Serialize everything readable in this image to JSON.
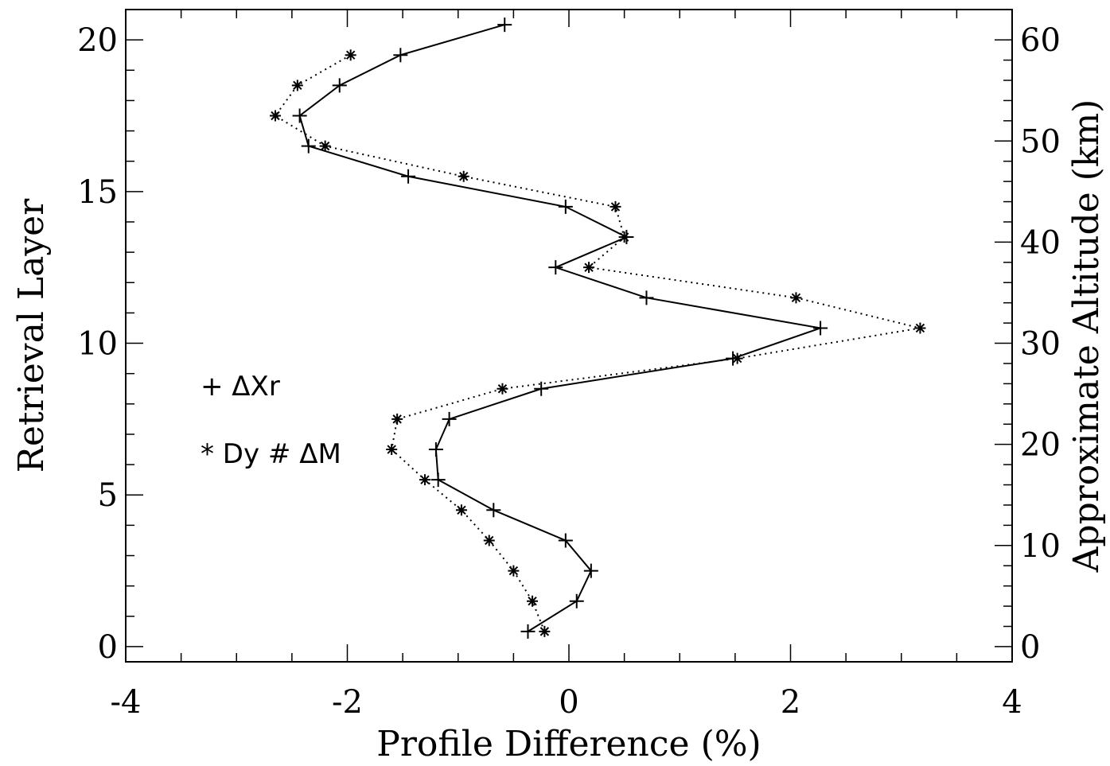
{
  "chart_data": {
    "type": "line",
    "xlabel": "Profile Difference (%)",
    "ylabel": "Retrieval Layer",
    "y2label": "Approximate Altitude (km)",
    "xlim": [
      -4,
      4
    ],
    "ylim": [
      -0.5,
      21
    ],
    "x_ticks": [
      -4,
      -2,
      0,
      2,
      4
    ],
    "x_tick_labels": [
      "-4",
      "-2",
      "0",
      "2",
      "4"
    ],
    "y_ticks": [
      0,
      5,
      10,
      15,
      20
    ],
    "y_tick_labels": [
      "0",
      "5",
      "10",
      "15",
      "20"
    ],
    "y2_ticks": [
      0,
      10,
      20,
      30,
      40,
      50,
      60
    ],
    "y2_tick_labels": [
      "0",
      "10",
      "20",
      "30",
      "40",
      "50",
      "60"
    ],
    "y2_per_layer": 3,
    "grid": false,
    "legend": [
      {
        "marker": "+",
        "label": "ΔXr"
      },
      {
        "marker": "*",
        "label": "Dy # ΔM"
      }
    ],
    "series": [
      {
        "name": "ΔXr",
        "marker": "+",
        "line": "solid",
        "points": [
          [
            -0.37,
            0.5
          ],
          [
            0.07,
            1.5
          ],
          [
            0.2,
            2.5
          ],
          [
            -0.03,
            3.5
          ],
          [
            -0.68,
            4.5
          ],
          [
            -1.18,
            5.5
          ],
          [
            -1.2,
            6.5
          ],
          [
            -1.08,
            7.5
          ],
          [
            -0.25,
            8.5
          ],
          [
            1.48,
            9.5
          ],
          [
            2.27,
            10.5
          ],
          [
            0.7,
            11.5
          ],
          [
            -0.12,
            12.5
          ],
          [
            0.52,
            13.5
          ],
          [
            -0.03,
            14.5
          ],
          [
            -1.45,
            15.5
          ],
          [
            -2.35,
            16.5
          ],
          [
            -2.43,
            17.5
          ],
          [
            -2.07,
            18.5
          ],
          [
            -1.52,
            19.5
          ],
          [
            -0.58,
            20.5
          ]
        ]
      },
      {
        "name": "Dy # ΔM",
        "marker": "*",
        "line": "dotted",
        "points": [
          [
            -0.22,
            0.5
          ],
          [
            -0.33,
            1.5
          ],
          [
            -0.5,
            2.5
          ],
          [
            -0.72,
            3.5
          ],
          [
            -0.97,
            4.5
          ],
          [
            -1.3,
            5.5
          ],
          [
            -1.6,
            6.5
          ],
          [
            -1.55,
            7.5
          ],
          [
            -0.6,
            8.5
          ],
          [
            1.52,
            9.5
          ],
          [
            3.17,
            10.5
          ],
          [
            2.05,
            11.5
          ],
          [
            0.18,
            12.5
          ],
          [
            0.5,
            13.5
          ],
          [
            0.42,
            14.5
          ],
          [
            -0.95,
            15.5
          ],
          [
            -2.2,
            16.5
          ],
          [
            -2.65,
            17.5
          ],
          [
            -2.45,
            18.5
          ],
          [
            -1.97,
            19.5
          ]
        ]
      }
    ]
  }
}
